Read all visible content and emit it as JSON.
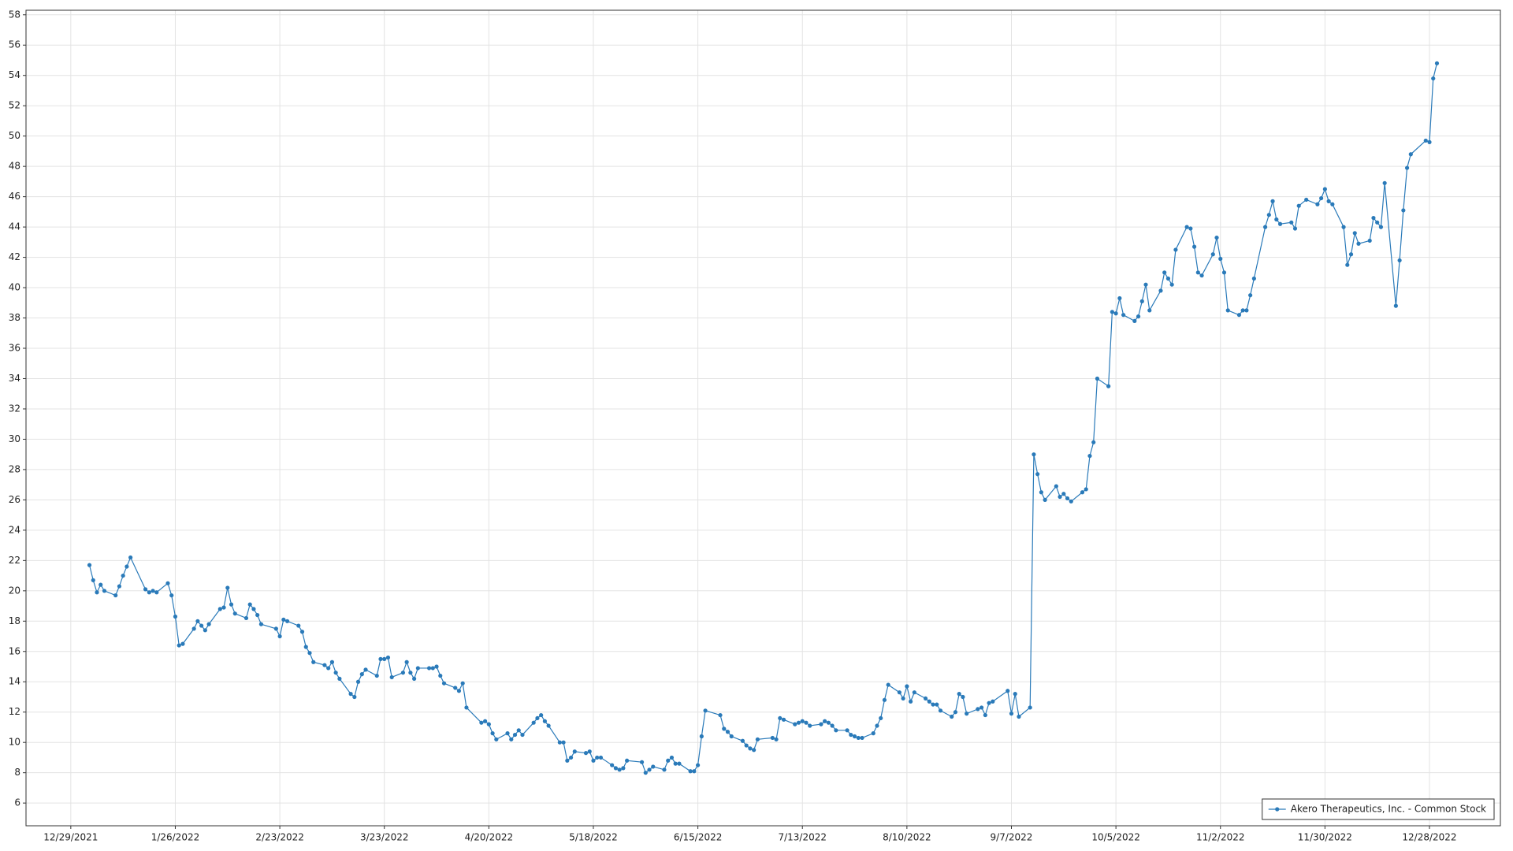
{
  "chart_data": {
    "type": "line",
    "x": [
      "1/3/2022",
      "1/4/2022",
      "1/5/2022",
      "1/6/2022",
      "1/7/2022",
      "1/10/2022",
      "1/11/2022",
      "1/12/2022",
      "1/13/2022",
      "1/14/2022",
      "1/18/2022",
      "1/19/2022",
      "1/20/2022",
      "1/21/2022",
      "1/24/2022",
      "1/25/2022",
      "1/26/2022",
      "1/27/2022",
      "1/28/2022",
      "1/31/2022",
      "2/1/2022",
      "2/2/2022",
      "2/3/2022",
      "2/4/2022",
      "2/7/2022",
      "2/8/2022",
      "2/9/2022",
      "2/10/2022",
      "2/11/2022",
      "2/14/2022",
      "2/15/2022",
      "2/16/2022",
      "2/17/2022",
      "2/18/2022",
      "2/22/2022",
      "2/23/2022",
      "2/24/2022",
      "2/25/2022",
      "2/28/2022",
      "3/1/2022",
      "3/2/2022",
      "3/3/2022",
      "3/4/2022",
      "3/7/2022",
      "3/8/2022",
      "3/9/2022",
      "3/10/2022",
      "3/11/2022",
      "3/14/2022",
      "3/15/2022",
      "3/16/2022",
      "3/17/2022",
      "3/18/2022",
      "3/21/2022",
      "3/22/2022",
      "3/23/2022",
      "3/24/2022",
      "3/25/2022",
      "3/28/2022",
      "3/29/2022",
      "3/30/2022",
      "3/31/2022",
      "4/1/2022",
      "4/4/2022",
      "4/5/2022",
      "4/6/2022",
      "4/7/2022",
      "4/8/2022",
      "4/11/2022",
      "4/12/2022",
      "4/13/2022",
      "4/14/2022",
      "4/18/2022",
      "4/19/2022",
      "4/20/2022",
      "4/21/2022",
      "4/22/2022",
      "4/25/2022",
      "4/26/2022",
      "4/27/2022",
      "4/28/2022",
      "4/29/2022",
      "5/2/2022",
      "5/3/2022",
      "5/4/2022",
      "5/5/2022",
      "5/6/2022",
      "5/9/2022",
      "5/10/2022",
      "5/11/2022",
      "5/12/2022",
      "5/13/2022",
      "5/16/2022",
      "5/17/2022",
      "5/18/2022",
      "5/19/2022",
      "5/20/2022",
      "5/23/2022",
      "5/24/2022",
      "5/25/2022",
      "5/26/2022",
      "5/27/2022",
      "5/31/2022",
      "6/1/2022",
      "6/2/2022",
      "6/3/2022",
      "6/6/2022",
      "6/7/2022",
      "6/8/2022",
      "6/9/2022",
      "6/10/2022",
      "6/13/2022",
      "6/14/2022",
      "6/15/2022",
      "6/16/2022",
      "6/17/2022",
      "6/21/2022",
      "6/22/2022",
      "6/23/2022",
      "6/24/2022",
      "6/27/2022",
      "6/28/2022",
      "6/29/2022",
      "6/30/2022",
      "7/1/2022",
      "7/5/2022",
      "7/6/2022",
      "7/7/2022",
      "7/8/2022",
      "7/11/2022",
      "7/12/2022",
      "7/13/2022",
      "7/14/2022",
      "7/15/2022",
      "7/18/2022",
      "7/19/2022",
      "7/20/2022",
      "7/21/2022",
      "7/22/2022",
      "7/25/2022",
      "7/26/2022",
      "7/27/2022",
      "7/28/2022",
      "7/29/2022",
      "8/1/2022",
      "8/2/2022",
      "8/3/2022",
      "8/4/2022",
      "8/5/2022",
      "8/8/2022",
      "8/9/2022",
      "8/10/2022",
      "8/11/2022",
      "8/12/2022",
      "8/15/2022",
      "8/16/2022",
      "8/17/2022",
      "8/18/2022",
      "8/19/2022",
      "8/22/2022",
      "8/23/2022",
      "8/24/2022",
      "8/25/2022",
      "8/26/2022",
      "8/29/2022",
      "8/30/2022",
      "8/31/2022",
      "9/1/2022",
      "9/2/2022",
      "9/6/2022",
      "9/7/2022",
      "9/8/2022",
      "9/9/2022",
      "9/12/2022",
      "9/13/2022",
      "9/14/2022",
      "9/15/2022",
      "9/16/2022",
      "9/19/2022",
      "9/20/2022",
      "9/21/2022",
      "9/22/2022",
      "9/23/2022",
      "9/26/2022",
      "9/27/2022",
      "9/28/2022",
      "9/29/2022",
      "9/30/2022",
      "10/3/2022",
      "10/4/2022",
      "10/5/2022",
      "10/6/2022",
      "10/7/2022",
      "10/10/2022",
      "10/11/2022",
      "10/12/2022",
      "10/13/2022",
      "10/14/2022",
      "10/17/2022",
      "10/18/2022",
      "10/19/2022",
      "10/20/2022",
      "10/21/2022",
      "10/24/2022",
      "10/25/2022",
      "10/26/2022",
      "10/27/2022",
      "10/28/2022",
      "10/31/2022",
      "11/1/2022",
      "11/2/2022",
      "11/3/2022",
      "11/4/2022",
      "11/7/2022",
      "11/8/2022",
      "11/9/2022",
      "11/10/2022",
      "11/11/2022",
      "11/14/2022",
      "11/15/2022",
      "11/16/2022",
      "11/17/2022",
      "11/18/2022",
      "11/21/2022",
      "11/22/2022",
      "11/23/2022",
      "11/25/2022",
      "11/28/2022",
      "11/29/2022",
      "11/30/2022",
      "12/1/2022",
      "12/2/2022",
      "12/5/2022",
      "12/6/2022",
      "12/7/2022",
      "12/8/2022",
      "12/9/2022",
      "12/12/2022",
      "12/13/2022",
      "12/14/2022",
      "12/15/2022",
      "12/16/2022",
      "12/19/2022",
      "12/20/2022",
      "12/21/2022",
      "12/22/2022",
      "12/23/2022",
      "12/27/2022",
      "12/28/2022",
      "12/29/2022",
      "12/30/2022"
    ],
    "series": [
      {
        "name": "Akero Therapeutics, Inc. - Common Stock",
        "color": "#2a7ab9",
        "values": [
          21.7,
          20.7,
          19.9,
          20.4,
          20.0,
          19.7,
          20.3,
          21.0,
          21.6,
          22.2,
          20.1,
          19.9,
          20.0,
          19.9,
          20.5,
          19.7,
          18.3,
          16.4,
          16.5,
          17.5,
          18.0,
          17.7,
          17.4,
          17.8,
          18.8,
          18.9,
          20.2,
          19.1,
          18.5,
          18.2,
          19.1,
          18.8,
          18.4,
          17.8,
          17.5,
          17.0,
          18.1,
          18.0,
          17.7,
          17.3,
          16.3,
          15.9,
          15.3,
          15.1,
          14.9,
          15.3,
          14.6,
          14.2,
          13.2,
          13.0,
          14.0,
          14.5,
          14.8,
          14.4,
          15.5,
          15.5,
          15.6,
          14.3,
          14.6,
          15.3,
          14.6,
          14.2,
          14.9,
          14.9,
          14.9,
          15.0,
          14.4,
          13.9,
          13.6,
          13.4,
          13.9,
          12.3,
          11.3,
          11.4,
          11.2,
          10.6,
          10.2,
          10.6,
          10.2,
          10.5,
          10.8,
          10.5,
          11.3,
          11.6,
          11.8,
          11.4,
          11.1,
          10.0,
          10.0,
          8.8,
          9.0,
          9.4,
          9.3,
          9.4,
          8.8,
          9.0,
          9.0,
          8.5,
          8.3,
          8.2,
          8.3,
          8.8,
          8.7,
          8.0,
          8.2,
          8.4,
          8.2,
          8.8,
          9.0,
          8.6,
          8.6,
          8.1,
          8.1,
          8.5,
          10.4,
          12.1,
          11.8,
          10.9,
          10.7,
          10.4,
          10.1,
          9.8,
          9.6,
          9.5,
          10.2,
          10.3,
          10.2,
          11.6,
          11.5,
          11.2,
          11.3,
          11.4,
          11.3,
          11.1,
          11.2,
          11.4,
          11.3,
          11.1,
          10.8,
          10.8,
          10.5,
          10.4,
          10.3,
          10.3,
          10.6,
          11.1,
          11.6,
          12.8,
          13.8,
          13.3,
          12.9,
          13.7,
          12.7,
          13.3,
          12.9,
          12.7,
          12.5,
          12.5,
          12.1,
          11.7,
          12.0,
          13.2,
          13.0,
          11.9,
          12.2,
          12.3,
          11.8,
          12.6,
          12.7,
          13.4,
          11.9,
          13.2,
          11.7,
          12.3,
          29.0,
          27.7,
          26.5,
          26.0,
          26.9,
          26.2,
          26.4,
          26.1,
          25.9,
          26.5,
          26.7,
          28.9,
          29.8,
          34.0,
          33.5,
          38.4,
          38.3,
          39.3,
          38.2,
          37.8,
          38.1,
          39.1,
          40.2,
          38.5,
          39.8,
          41.0,
          40.6,
          40.2,
          42.5,
          44.0,
          43.9,
          42.7,
          41.0,
          40.8,
          42.2,
          43.3,
          41.9,
          41.0,
          38.5,
          38.2,
          38.5,
          38.5,
          39.5,
          40.6,
          44.0,
          44.8,
          45.7,
          44.5,
          44.2,
          44.3,
          43.9,
          45.4,
          45.8,
          45.5,
          45.9,
          46.5,
          45.7,
          45.5,
          44.0,
          41.5,
          42.2,
          43.6,
          42.9,
          43.1,
          44.6,
          44.3,
          44.0,
          46.9,
          38.8,
          41.8,
          45.1,
          47.9,
          48.8,
          49.7,
          49.6,
          53.8,
          54.8
        ]
      }
    ],
    "xlim": [
      "12/17/2021",
      "1/16/2023"
    ],
    "xticks": [
      "12/29/2021",
      "1/26/2022",
      "2/23/2022",
      "3/23/2022",
      "4/20/2022",
      "5/18/2022",
      "6/15/2022",
      "7/13/2022",
      "8/10/2022",
      "9/7/2022",
      "10/5/2022",
      "11/2/2022",
      "11/30/2022",
      "12/28/2022"
    ],
    "ylim": [
      4.5,
      58.3
    ],
    "yticks": [
      6,
      8,
      10,
      12,
      14,
      16,
      18,
      20,
      22,
      24,
      26,
      28,
      30,
      32,
      34,
      36,
      38,
      40,
      42,
      44,
      46,
      48,
      50,
      52,
      54,
      56,
      58
    ],
    "grid": true,
    "legend": "lower right"
  }
}
